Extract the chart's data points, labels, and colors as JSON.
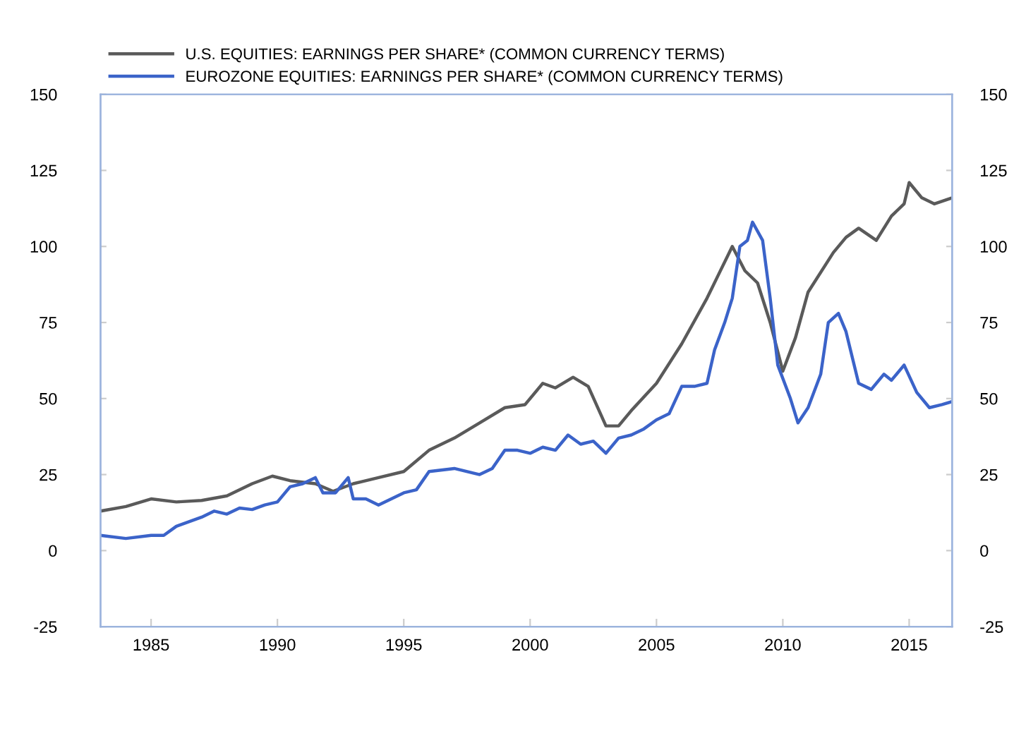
{
  "chart_data": {
    "type": "line",
    "series": [
      {
        "name": "U.S. EQUITIES: EARNINGS PER SHARE* (COMMON CURRENCY TERMS)",
        "color": "#5a5a5a",
        "x": [
          1983,
          1984,
          1985,
          1986,
          1987,
          1988,
          1989,
          1989.8,
          1990.5,
          1991.5,
          1992.2,
          1993,
          1994,
          1995,
          1996,
          1997,
          1998,
          1999,
          1999.8,
          2000.5,
          2001,
          2001.7,
          2002.3,
          2003,
          2003.5,
          2004,
          2005,
          2006,
          2007,
          2008,
          2008.5,
          2009,
          2009.5,
          2010,
          2010.5,
          2011,
          2012,
          2012.5,
          2013,
          2013.7,
          2014.3,
          2014.8,
          2015,
          2015.5,
          2016,
          2016.7
        ],
        "values": [
          13,
          14.5,
          17,
          16,
          16.5,
          18,
          22,
          24.5,
          23,
          22,
          19.5,
          22,
          24,
          26,
          33,
          37,
          42,
          47,
          48,
          55,
          53.5,
          57,
          54,
          41,
          41,
          46,
          55,
          68,
          83,
          100,
          92,
          88,
          75,
          59,
          70,
          85,
          98,
          103,
          106,
          102,
          110,
          114,
          121,
          116,
          114,
          116
        ]
      },
      {
        "name": "EUROZONE EQUITIES: EARNINGS PER SHARE* (COMMON CURRENCY TERMS)",
        "color": "#3b63c9",
        "x": [
          1983,
          1984,
          1985,
          1985.5,
          1986,
          1987,
          1987.5,
          1988,
          1988.5,
          1989,
          1989.5,
          1990,
          1990.5,
          1991,
          1991.5,
          1991.8,
          1992.3,
          1992.8,
          1993,
          1993.5,
          1994,
          1995,
          1995.5,
          1996,
          1997,
          1998,
          1998.5,
          1999,
          1999.5,
          2000,
          2000.5,
          2001,
          2001.5,
          2002,
          2002.5,
          2003,
          2003.5,
          2004,
          2004.5,
          2005,
          2005.5,
          2006,
          2006.5,
          2007,
          2007.3,
          2007.7,
          2008,
          2008.3,
          2008.6,
          2008.8,
          2009.2,
          2009.5,
          2009.8,
          2010.3,
          2010.6,
          2011,
          2011.5,
          2011.8,
          2012.2,
          2012.5,
          2013,
          2013.5,
          2014,
          2014.3,
          2014.8,
          2015.3,
          2015.8,
          2016.3,
          2016.7
        ],
        "values": [
          5,
          4,
          5,
          5,
          8,
          11,
          13,
          12,
          14,
          13.5,
          15,
          16,
          21,
          22,
          24,
          19,
          19,
          24,
          17,
          17,
          15,
          19,
          20,
          26,
          27,
          25,
          27,
          33,
          33,
          32,
          34,
          33,
          38,
          35,
          36,
          32,
          37,
          38,
          40,
          43,
          45,
          54,
          54,
          55,
          66,
          75,
          83,
          100,
          102,
          108,
          102,
          83,
          61,
          50,
          42,
          47,
          58,
          75,
          78,
          72,
          55,
          53,
          58,
          56,
          61,
          52,
          47,
          48,
          49
        ]
      }
    ],
    "xlim": [
      1983,
      2016.7
    ],
    "xticks": [
      1985,
      1990,
      1995,
      2000,
      2005,
      2010,
      2015
    ],
    "ylim": [
      -25,
      150
    ],
    "yticks": [
      -25,
      0,
      25,
      50,
      75,
      100,
      125,
      150
    ],
    "y2lim": [
      -25,
      150
    ],
    "y2ticks": [
      -25,
      0,
      25,
      50,
      75,
      100,
      125,
      150
    ],
    "legend": "top left",
    "grid": false,
    "marker": "none",
    "line_style": "solid"
  }
}
